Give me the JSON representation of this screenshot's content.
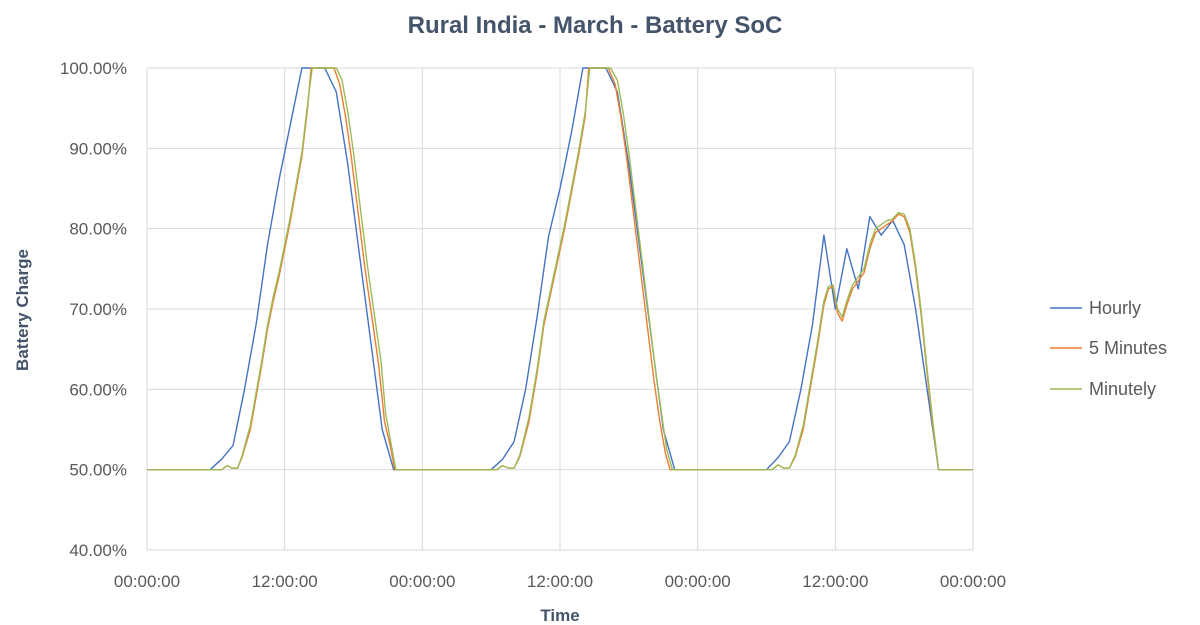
{
  "chart_data": {
    "type": "line",
    "title": "Rural India - March - Battery SoC",
    "xlabel": "Time",
    "ylabel": "Battery Charge",
    "x_unit": "hours",
    "xlim": [
      0,
      72
    ],
    "ylim": [
      40,
      100
    ],
    "y_ticks": [
      40,
      50,
      60,
      70,
      80,
      90,
      100
    ],
    "y_tick_labels": [
      "40.00%",
      "50.00%",
      "60.00%",
      "70.00%",
      "80.00%",
      "90.00%",
      "100.00%"
    ],
    "x_ticks": [
      0,
      12,
      24,
      36,
      48,
      60,
      72
    ],
    "x_tick_labels": [
      "00:00:00",
      "12:00:00",
      "00:00:00",
      "12:00:00",
      "00:00:00",
      "12:00:00",
      "00:00:00"
    ],
    "grid": {
      "vertical": true,
      "horizontal": true
    },
    "legend_position": "right",
    "series": [
      {
        "name": "Hourly",
        "color": "#4472c4",
        "points": [
          [
            0,
            50
          ],
          [
            5.5,
            50
          ],
          [
            6.5,
            51.3
          ],
          [
            7.5,
            53
          ],
          [
            8.5,
            60
          ],
          [
            9.5,
            68
          ],
          [
            10.5,
            78
          ],
          [
            11.5,
            86
          ],
          [
            12.5,
            93
          ],
          [
            13.5,
            100
          ],
          [
            14.5,
            100
          ],
          [
            15.5,
            100
          ],
          [
            16.5,
            97
          ],
          [
            17.5,
            88
          ],
          [
            18.5,
            77
          ],
          [
            19.5,
            66
          ],
          [
            20.5,
            55
          ],
          [
            21.5,
            50
          ],
          [
            24,
            50
          ],
          [
            30,
            50
          ],
          [
            31,
            51.3
          ],
          [
            32,
            53.5
          ],
          [
            33,
            60
          ],
          [
            34,
            69
          ],
          [
            35,
            79
          ],
          [
            36,
            85
          ],
          [
            37,
            92
          ],
          [
            38,
            100
          ],
          [
            39,
            100
          ],
          [
            40,
            100
          ],
          [
            41,
            97
          ],
          [
            42,
            88
          ],
          [
            43,
            77
          ],
          [
            44,
            66
          ],
          [
            45,
            55
          ],
          [
            46,
            50
          ],
          [
            48,
            50
          ],
          [
            54,
            50
          ],
          [
            55,
            51.5
          ],
          [
            56,
            53.5
          ],
          [
            57,
            60
          ],
          [
            58,
            68
          ],
          [
            59,
            79.2
          ],
          [
            60,
            70
          ],
          [
            61,
            77.5
          ],
          [
            62,
            72.5
          ],
          [
            63,
            81.5
          ],
          [
            64,
            79.2
          ],
          [
            65,
            81
          ],
          [
            66,
            78
          ],
          [
            67,
            70
          ],
          [
            68,
            60
          ],
          [
            69,
            50
          ],
          [
            72,
            50
          ]
        ]
      },
      {
        "name": "5 Minutes",
        "color": "#ed7d31",
        "points": [
          [
            0,
            50
          ],
          [
            6.5,
            50
          ],
          [
            7,
            50.5
          ],
          [
            7.4,
            50.2
          ],
          [
            7.9,
            50.2
          ],
          [
            8.3,
            51.6
          ],
          [
            9,
            55
          ],
          [
            9.5,
            59
          ],
          [
            10,
            63
          ],
          [
            10.5,
            67.5
          ],
          [
            11,
            71
          ],
          [
            11.5,
            74
          ],
          [
            12,
            77.5
          ],
          [
            12.5,
            81
          ],
          [
            13,
            85
          ],
          [
            13.5,
            89
          ],
          [
            14,
            95
          ],
          [
            14.3,
            100
          ],
          [
            15,
            100
          ],
          [
            15.5,
            100
          ],
          [
            16.3,
            100
          ],
          [
            16.8,
            98
          ],
          [
            17.3,
            94
          ],
          [
            17.8,
            89
          ],
          [
            18.4,
            82
          ],
          [
            19,
            75
          ],
          [
            19.6,
            69
          ],
          [
            20.2,
            63
          ],
          [
            20.7,
            56
          ],
          [
            21.2,
            53
          ],
          [
            21.6,
            50
          ],
          [
            24,
            50
          ],
          [
            30.5,
            50
          ],
          [
            31,
            50.5
          ],
          [
            31.5,
            50.2
          ],
          [
            32,
            50.2
          ],
          [
            32.5,
            51.6
          ],
          [
            33.3,
            56
          ],
          [
            34,
            62
          ],
          [
            34.6,
            68
          ],
          [
            35.2,
            72
          ],
          [
            35.8,
            76
          ],
          [
            36.4,
            80
          ],
          [
            37,
            84.5
          ],
          [
            37.6,
            89
          ],
          [
            38.2,
            94
          ],
          [
            38.5,
            100
          ],
          [
            39.2,
            100
          ],
          [
            40.2,
            100
          ],
          [
            40.8,
            98
          ],
          [
            41.3,
            94
          ],
          [
            41.8,
            89
          ],
          [
            42.4,
            82
          ],
          [
            43,
            75
          ],
          [
            43.6,
            68
          ],
          [
            44.2,
            61
          ],
          [
            44.7,
            56
          ],
          [
            45.2,
            52
          ],
          [
            45.6,
            50
          ],
          [
            48,
            50
          ],
          [
            54.5,
            50
          ],
          [
            55,
            50.6
          ],
          [
            55.5,
            50.2
          ],
          [
            56,
            50.2
          ],
          [
            56.5,
            51.6
          ],
          [
            57.2,
            55
          ],
          [
            57.8,
            60
          ],
          [
            58.4,
            65
          ],
          [
            59,
            70.5
          ],
          [
            59.4,
            72.5
          ],
          [
            59.8,
            72.8
          ],
          [
            60.2,
            69.5
          ],
          [
            60.6,
            68.5
          ],
          [
            61,
            70.5
          ],
          [
            61.5,
            72.5
          ],
          [
            62,
            73.5
          ],
          [
            62.5,
            74.5
          ],
          [
            63,
            77.5
          ],
          [
            63.5,
            79.5
          ],
          [
            64,
            80
          ],
          [
            64.5,
            80.5
          ],
          [
            65,
            81
          ],
          [
            65.5,
            81.8
          ],
          [
            66,
            81.5
          ],
          [
            66.5,
            79.5
          ],
          [
            67,
            75
          ],
          [
            67.5,
            69
          ],
          [
            68,
            62
          ],
          [
            68.5,
            55.5
          ],
          [
            69,
            50
          ],
          [
            72,
            50
          ]
        ]
      },
      {
        "name": "Minutely",
        "color": "#9bbb59",
        "points": [
          [
            0,
            50
          ],
          [
            6.5,
            50
          ],
          [
            7,
            50.5
          ],
          [
            7.4,
            50.2
          ],
          [
            7.9,
            50.2
          ],
          [
            8.3,
            51.8
          ],
          [
            9,
            55.5
          ],
          [
            9.5,
            59.5
          ],
          [
            10,
            63.5
          ],
          [
            10.5,
            68
          ],
          [
            11,
            71.5
          ],
          [
            11.5,
            74.5
          ],
          [
            12,
            78
          ],
          [
            12.5,
            81.5
          ],
          [
            13,
            85.5
          ],
          [
            13.5,
            89.5
          ],
          [
            14,
            95.5
          ],
          [
            14.4,
            100
          ],
          [
            15,
            100
          ],
          [
            15.7,
            100
          ],
          [
            16.5,
            100
          ],
          [
            17,
            98.5
          ],
          [
            17.5,
            94.5
          ],
          [
            18,
            89.5
          ],
          [
            18.6,
            82.5
          ],
          [
            19.2,
            75.5
          ],
          [
            19.8,
            69.5
          ],
          [
            20.4,
            63.5
          ],
          [
            20.8,
            57
          ],
          [
            21.3,
            53
          ],
          [
            21.7,
            50
          ],
          [
            24,
            50
          ],
          [
            30.5,
            50
          ],
          [
            31,
            50.5
          ],
          [
            31.5,
            50.2
          ],
          [
            32,
            50.2
          ],
          [
            32.5,
            51.8
          ],
          [
            33.3,
            56.5
          ],
          [
            34,
            62.5
          ],
          [
            34.6,
            68.5
          ],
          [
            35.2,
            72.5
          ],
          [
            35.8,
            76.5
          ],
          [
            36.4,
            80.5
          ],
          [
            37,
            85
          ],
          [
            37.6,
            89.5
          ],
          [
            38.2,
            94.5
          ],
          [
            38.6,
            100
          ],
          [
            39.3,
            100
          ],
          [
            40.4,
            100
          ],
          [
            41,
            98.5
          ],
          [
            41.5,
            94.5
          ],
          [
            42,
            89.5
          ],
          [
            42.6,
            82.5
          ],
          [
            43.2,
            75.5
          ],
          [
            43.8,
            68.5
          ],
          [
            44.4,
            61.5
          ],
          [
            44.9,
            56.5
          ],
          [
            45.3,
            52.5
          ],
          [
            45.8,
            50
          ],
          [
            48,
            50
          ],
          [
            54.5,
            50
          ],
          [
            55,
            50.6
          ],
          [
            55.5,
            50.2
          ],
          [
            56,
            50.2
          ],
          [
            56.5,
            51.8
          ],
          [
            57.2,
            55.5
          ],
          [
            57.8,
            60.5
          ],
          [
            58.4,
            65.5
          ],
          [
            59,
            71
          ],
          [
            59.4,
            72.8
          ],
          [
            59.8,
            73
          ],
          [
            60.2,
            70
          ],
          [
            60.6,
            69
          ],
          [
            61,
            71
          ],
          [
            61.5,
            73
          ],
          [
            62,
            74
          ],
          [
            62.5,
            75
          ],
          [
            63,
            78
          ],
          [
            63.5,
            80
          ],
          [
            64,
            80.5
          ],
          [
            64.5,
            81
          ],
          [
            65,
            81.2
          ],
          [
            65.5,
            82
          ],
          [
            66,
            81.8
          ],
          [
            66.5,
            80
          ],
          [
            67,
            75.5
          ],
          [
            67.5,
            69.5
          ],
          [
            68,
            62.5
          ],
          [
            68.5,
            56
          ],
          [
            69,
            50
          ],
          [
            72,
            50
          ]
        ]
      }
    ]
  }
}
